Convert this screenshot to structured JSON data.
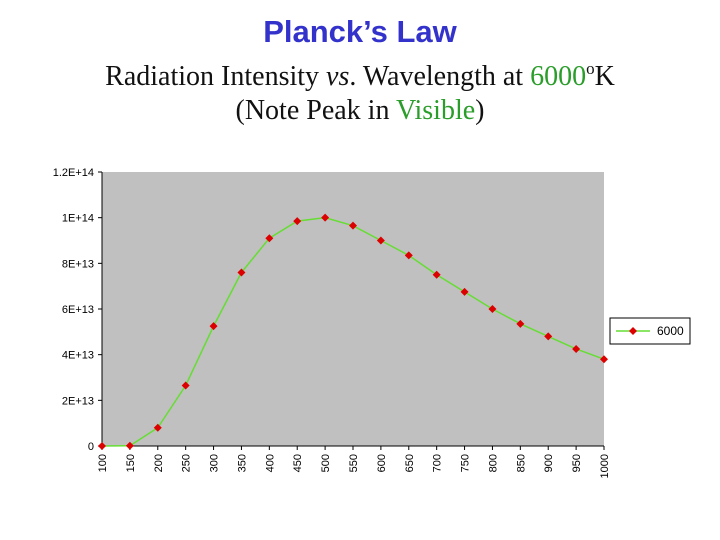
{
  "header": {
    "title": "Planck’s Law",
    "subtitle_line1_prefix": "Radiation Intensity ",
    "subtitle_line1_vs": "vs",
    "subtitle_line1_middle": ". Wavelength at ",
    "subtitle_line1_temp": "6000",
    "subtitle_line1_degree": "o",
    "subtitle_line1_unit": "K",
    "subtitle_line2_prefix": "(Note Peak in ",
    "subtitle_line2_visible": "Visible",
    "subtitle_line2_suffix": ")"
  },
  "colors": {
    "title": "#3333cc",
    "highlight": "#2a9d2a",
    "plot_background": "#c0c0c0",
    "line": "#66dd33",
    "marker": "#dd0000"
  },
  "chart_data": {
    "type": "line",
    "x": [
      100,
      150,
      200,
      250,
      300,
      350,
      400,
      450,
      500,
      550,
      600,
      650,
      700,
      750,
      800,
      850,
      900,
      950,
      1000
    ],
    "x_tick_labels": [
      "100",
      "150",
      "200",
      "250",
      "300",
      "350",
      "400",
      "450",
      "500",
      "550",
      "600",
      "650",
      "700",
      "750",
      "800",
      "850",
      "900",
      "950",
      "1000"
    ],
    "series": [
      {
        "name": "6000",
        "values": [
          0,
          100000000000.0,
          8000000000000.0,
          26500000000000.0,
          52500000000000.0,
          76000000000000.0,
          91000000000000.0,
          98500000000000.0,
          100000000000000.0,
          96500000000000.0,
          90000000000000.0,
          83500000000000.0,
          75000000000000.0,
          67500000000000.0,
          60000000000000.0,
          53500000000000.0,
          48000000000000.0,
          42500000000000.0,
          38000000000000.0
        ],
        "color": "#66dd33",
        "marker": "diamond",
        "marker_color": "#dd0000"
      }
    ],
    "y_ticks": [
      0,
      20000000000000.0,
      40000000000000.0,
      60000000000000.0,
      80000000000000.0,
      100000000000000.0,
      120000000000000.0
    ],
    "y_tick_labels": [
      "0",
      "2E+13",
      "4E+13",
      "6E+13",
      "8E+13",
      "1E+14",
      "1.2E+14"
    ],
    "ylim": [
      0,
      120000000000000.0
    ],
    "xlabel": "",
    "ylabel": "",
    "grid": false,
    "legend": {
      "position": "right",
      "entries": [
        "6000"
      ]
    }
  }
}
